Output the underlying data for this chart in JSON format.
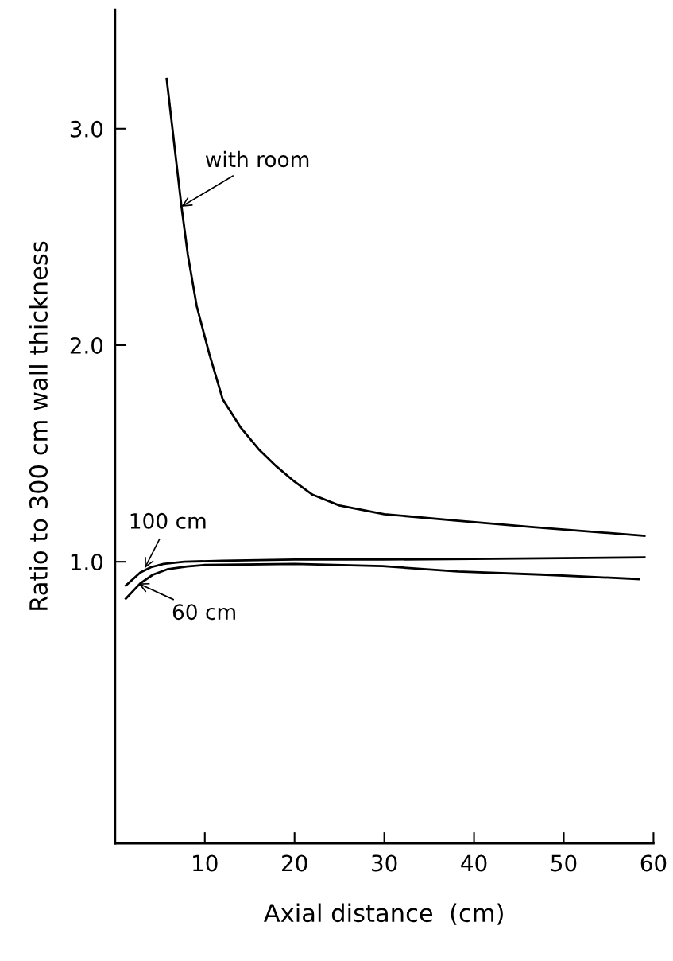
{
  "chart_data": {
    "type": "line",
    "xlabel": "Axial distance  (cm)",
    "ylabel": "Ratio to 300 cm wall thickness",
    "xlim": [
      0,
      60
    ],
    "xticks": [
      10,
      20,
      30,
      40,
      50,
      60
    ],
    "ylim": [
      -0.3,
      3.55
    ],
    "yticks": [
      {
        "value": 1,
        "label": "1.0"
      },
      {
        "value": 2,
        "label": "2.0"
      },
      {
        "value": 3,
        "label": "3.0"
      }
    ],
    "grid": false,
    "marker": "none",
    "line_style": "solid",
    "series": [
      {
        "color": "#000000",
        "x": [
          5.75,
          7.4,
          8.1,
          9.1,
          10.5,
          12,
          14,
          16,
          18,
          20,
          22,
          25,
          30,
          38,
          46.6,
          59
        ],
        "values": [
          3.23,
          2.64,
          2.42,
          2.18,
          1.96,
          1.75,
          1.62,
          1.52,
          1.44,
          1.37,
          1.31,
          1.26,
          1.22,
          1.19,
          1.16,
          1.12
        ]
      },
      {
        "color": "#000000",
        "x": [
          1.2,
          2.8,
          4,
          5.4,
          7.7,
          12,
          20,
          29.8,
          45,
          59
        ],
        "values": [
          0.89,
          0.95,
          0.975,
          0.99,
          1.0,
          1.005,
          1.01,
          1.01,
          1.015,
          1.02
        ]
      },
      {
        "color": "#000000",
        "x": [
          1.2,
          2.8,
          4.2,
          5.8,
          8,
          10,
          20,
          29.8,
          38.2,
          48,
          58.4
        ],
        "values": [
          0.83,
          0.9,
          0.94,
          0.965,
          0.978,
          0.985,
          0.99,
          0.98,
          0.955,
          0.94,
          0.92
        ]
      }
    ],
    "annotations": [
      {
        "text": "with room",
        "x": 7.4,
        "y": 2.64
      },
      {
        "text": "100 cm",
        "x": 3.3,
        "y": 0.97
      },
      {
        "text": "60 cm",
        "x": 2.6,
        "y": 0.9
      }
    ]
  }
}
